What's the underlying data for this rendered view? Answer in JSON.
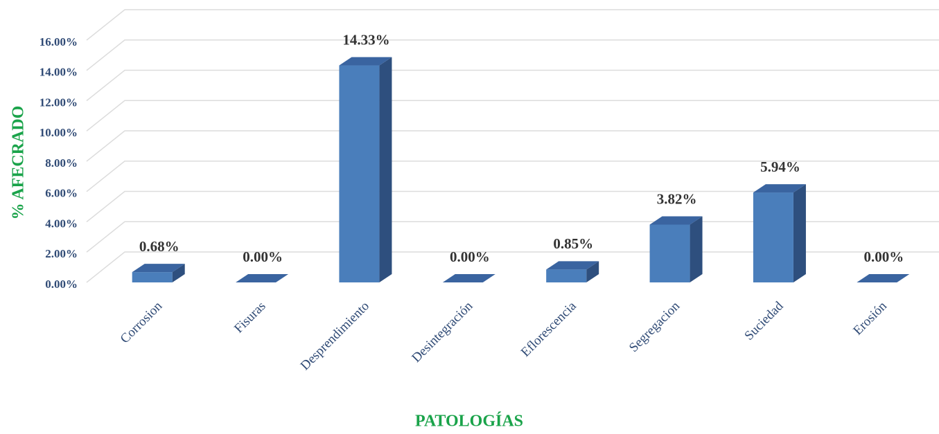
{
  "chart_data": {
    "type": "bar3d",
    "xlabel": "PATOLOGÍAS",
    "ylabel": "% AFECRADO",
    "categories": [
      "Corrosion",
      "Fisuras",
      "Desprendimiento",
      "Desintegración",
      "Eflorescencia",
      "Segregacion",
      "Suciedad",
      "Erosión"
    ],
    "values": [
      0.68,
      0,
      14.33,
      0,
      0.85,
      3.82,
      5.94,
      0
    ],
    "value_labels": [
      "0.68%",
      "0.00%",
      "14.33%",
      "0.00%",
      "0.85%",
      "3.82%",
      "5.94%",
      "0.00%"
    ],
    "color": "#4a7ebb",
    "ylim": [
      0,
      16
    ],
    "yticks": [
      {
        "value": 0,
        "label": "0.00%"
      },
      {
        "value": 2,
        "label": "2.00%"
      },
      {
        "value": 4,
        "label": "4.00%"
      },
      {
        "value": 6,
        "label": "6.00%"
      },
      {
        "value": 8,
        "label": "8.00%"
      },
      {
        "value": 10,
        "label": "10.00%"
      },
      {
        "value": 12,
        "label": "12.00%"
      },
      {
        "value": 14,
        "label": "14.00%"
      },
      {
        "value": 16,
        "label": "16.00%"
      }
    ],
    "grid": true
  }
}
